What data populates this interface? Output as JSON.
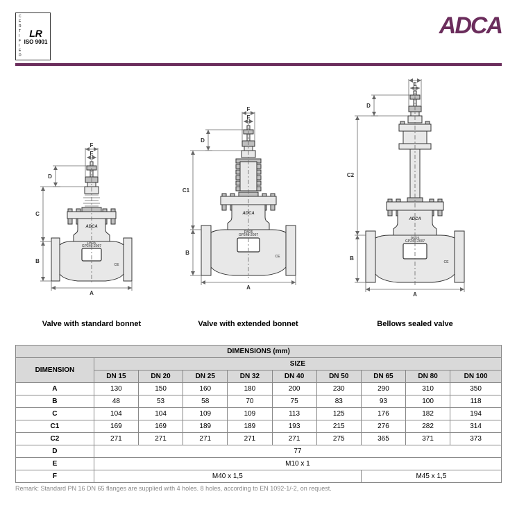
{
  "header": {
    "iso_vertical": "CERTIFIED",
    "iso_lr": "LR",
    "iso_text": "ISO 9001",
    "brand": "ADCA"
  },
  "colors": {
    "brand": "#6b2d5c",
    "rule": "#6b2d5c",
    "table_header_bg": "#d9d9d9",
    "border": "#888888"
  },
  "diagrams": {
    "captions": [
      "Valve with standard bonnet",
      "Valve with extended bonnet",
      "Bellows sealed valve"
    ],
    "dim_labels": [
      "A",
      "B",
      "C",
      "C1",
      "C2",
      "D",
      "E",
      "F"
    ]
  },
  "table": {
    "title": "DIMENSIONS (mm)",
    "row_header": "DIMENSION",
    "size_header": "SIZE",
    "sizes": [
      "DN 15",
      "DN 20",
      "DN 25",
      "DN 32",
      "DN 40",
      "DN 50",
      "DN 65",
      "DN 80",
      "DN 100"
    ],
    "rows": [
      {
        "label": "A",
        "values": [
          "130",
          "150",
          "160",
          "180",
          "200",
          "230",
          "290",
          "310",
          "350"
        ]
      },
      {
        "label": "B",
        "values": [
          "48",
          "53",
          "58",
          "70",
          "75",
          "83",
          "93",
          "100",
          "118"
        ]
      },
      {
        "label": "C",
        "values": [
          "104",
          "104",
          "109",
          "109",
          "113",
          "125",
          "176",
          "182",
          "194"
        ]
      },
      {
        "label": "C1",
        "values": [
          "169",
          "169",
          "189",
          "189",
          "193",
          "215",
          "276",
          "282",
          "314"
        ]
      },
      {
        "label": "C2",
        "values": [
          "271",
          "271",
          "271",
          "271",
          "271",
          "275",
          "365",
          "371",
          "373"
        ]
      }
    ],
    "span_rows": [
      {
        "label": "D",
        "span_all": "77"
      },
      {
        "label": "E",
        "span_all": "M10 x 1"
      },
      {
        "label": "F",
        "spans": [
          {
            "cols": 6,
            "text": "M40 x 1,5"
          },
          {
            "cols": 3,
            "text": "M45 x 1,5"
          }
        ]
      }
    ],
    "remark": "Remark: Standard PN 16 DN 65 flanges are supplied with 4 holes. 8 holes, according to EN 1092-1/-2, on request."
  }
}
